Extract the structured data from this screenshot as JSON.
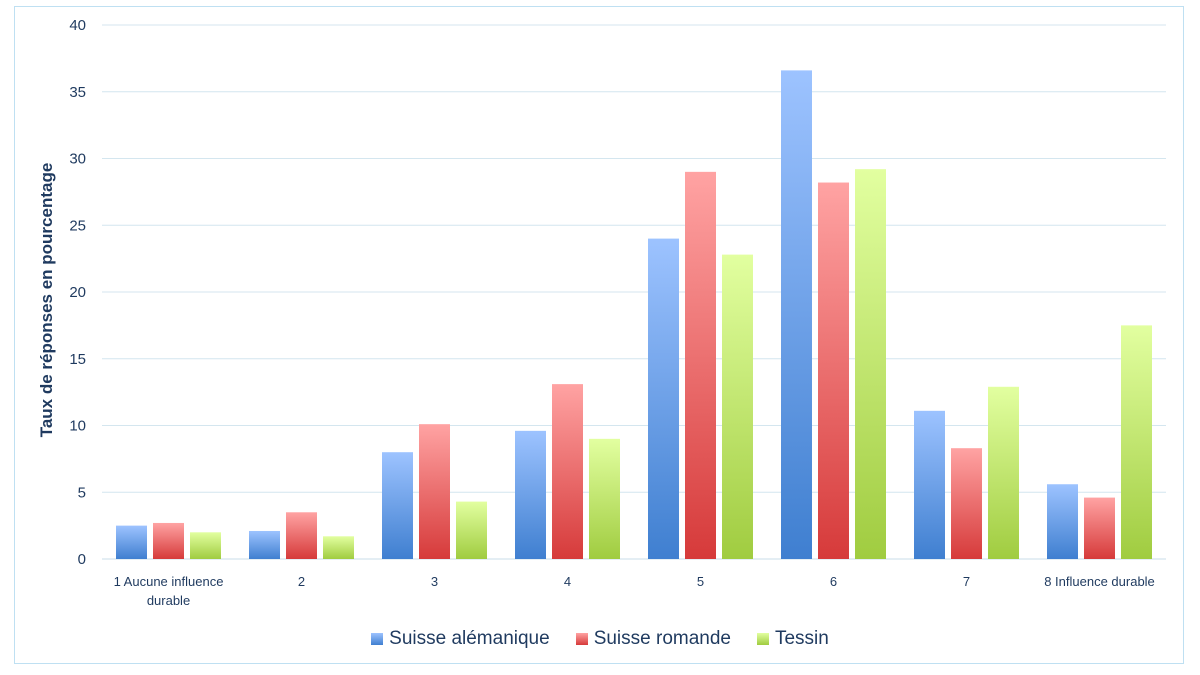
{
  "chart_data": {
    "type": "bar",
    "ylabel": "Taux de réponses en pourcentage",
    "xlabel": "",
    "ylim": [
      0,
      40
    ],
    "yticks": [
      0,
      5,
      10,
      15,
      20,
      25,
      30,
      35,
      40
    ],
    "grid": true,
    "legend_position": "bottom",
    "categories": [
      [
        "1 Aucune influence",
        "durable"
      ],
      [
        "2"
      ],
      [
        "3"
      ],
      [
        "4"
      ],
      [
        "5"
      ],
      [
        "6"
      ],
      [
        "7"
      ],
      [
        "8 Influence durable"
      ]
    ],
    "series": [
      {
        "name": "Suisse alémanique",
        "color_top": "#9dc3ff",
        "color_bottom": "#3f7fd0",
        "values": [
          2.5,
          2.1,
          8.0,
          9.6,
          24.0,
          36.6,
          11.1,
          5.6
        ]
      },
      {
        "name": "Suisse romande",
        "color_top": "#ffa3a3",
        "color_bottom": "#d63a3a",
        "values": [
          2.7,
          3.5,
          10.1,
          13.1,
          29.0,
          28.2,
          8.3,
          4.6
        ]
      },
      {
        "name": "Tessin",
        "color_top": "#e2ffa0",
        "color_bottom": "#a0cc40",
        "values": [
          2.0,
          1.7,
          4.3,
          9.0,
          22.8,
          29.2,
          12.9,
          17.5
        ]
      }
    ]
  }
}
